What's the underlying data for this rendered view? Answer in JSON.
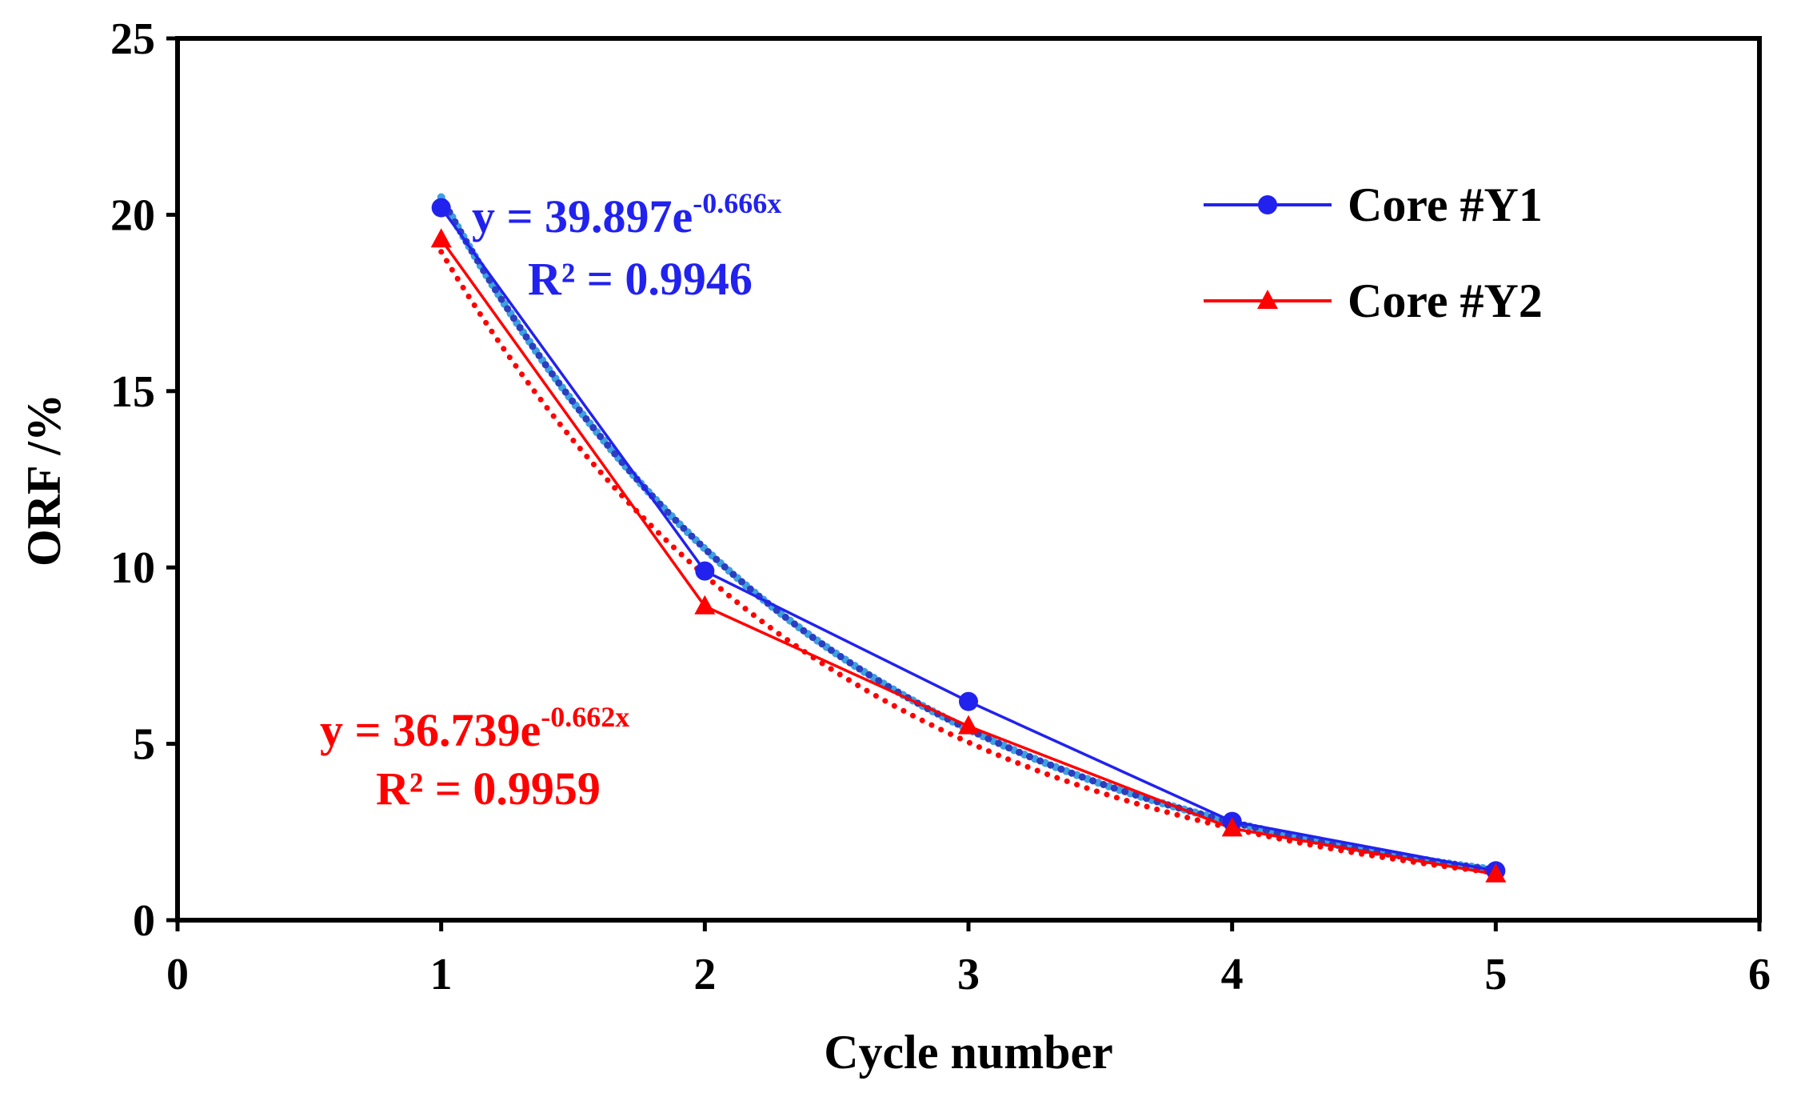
{
  "chart_data": {
    "type": "line",
    "xlabel": "Cycle number",
    "ylabel": "ORF /%",
    "xlim": [
      0,
      6
    ],
    "ylim": [
      0,
      25
    ],
    "x_ticks": [
      "0",
      "1",
      "2",
      "3",
      "4",
      "5",
      "6"
    ],
    "y_ticks": [
      "0",
      "5",
      "10",
      "15",
      "20",
      "25"
    ],
    "grid": false,
    "legend_position": "top-right",
    "series": [
      {
        "name": "Core #Y1",
        "color": "#2222ee",
        "marker": "circle",
        "x": [
          1,
          2,
          3,
          4,
          5
        ],
        "y": [
          20.2,
          9.9,
          6.2,
          2.8,
          1.4
        ],
        "trendline": {
          "type": "exponential",
          "a": 39.897,
          "b": -0.666,
          "color": "#3fa0e0",
          "equation_prefix": "y = 39.897e",
          "equation_exponent": "-0.666x",
          "r2_label": "R² = 0.9946"
        }
      },
      {
        "name": "Core #Y2",
        "color": "#ff0000",
        "marker": "triangle",
        "x": [
          1,
          2,
          3,
          4,
          5
        ],
        "y": [
          19.3,
          8.9,
          5.5,
          2.6,
          1.3
        ],
        "trendline": {
          "type": "exponential",
          "a": 36.739,
          "b": -0.662,
          "color": "#ff0000",
          "equation_prefix": "y = 36.739e",
          "equation_exponent": "-0.662x",
          "r2_label": "R² = 0.9959"
        }
      }
    ]
  }
}
